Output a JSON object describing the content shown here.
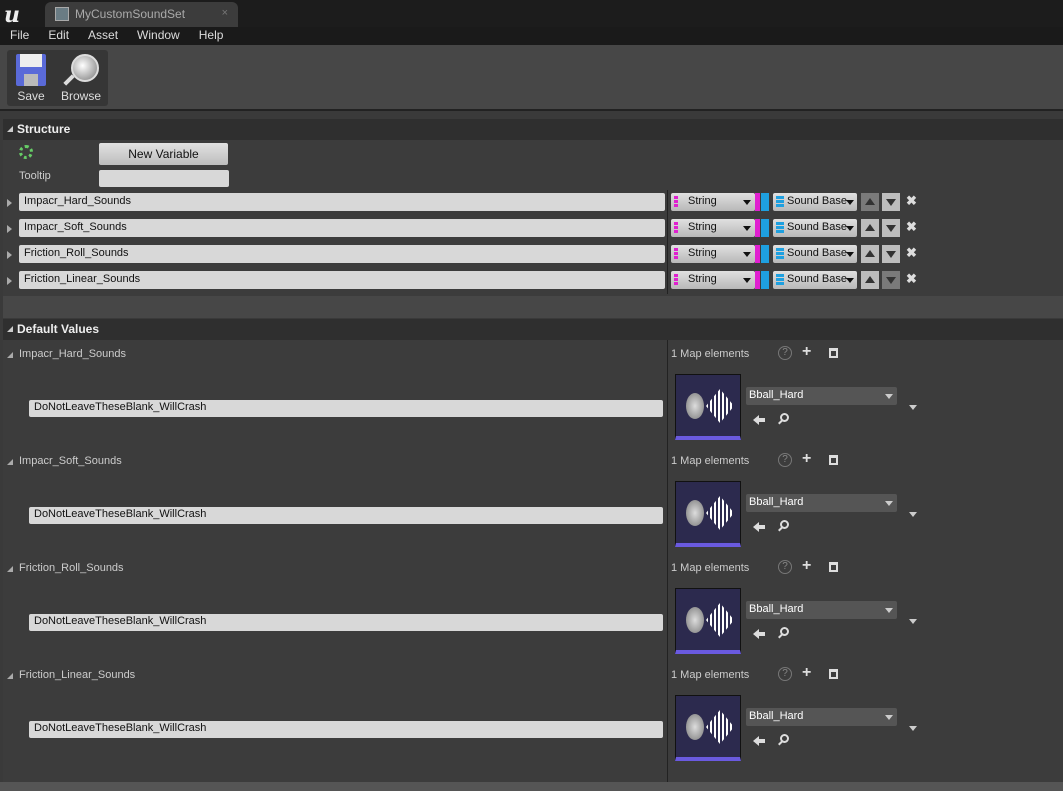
{
  "tab": {
    "title": "MyCustomSoundSet",
    "close": "×"
  },
  "menu": [
    "File",
    "Edit",
    "Asset",
    "Window",
    "Help"
  ],
  "toolbar": {
    "save": "Save",
    "browse": "Browse"
  },
  "structure": {
    "title": "Structure",
    "new_variable": "New Variable",
    "tooltip_label": "Tooltip",
    "tooltip_value": "",
    "variables": [
      {
        "name": "Impacr_Hard_Sounds",
        "key_type": "String",
        "value_type": "Sound Base"
      },
      {
        "name": "Impacr_Soft_Sounds",
        "key_type": "String",
        "value_type": "Sound Base"
      },
      {
        "name": "Friction_Roll_Sounds",
        "key_type": "String",
        "value_type": "Sound Base"
      },
      {
        "name": "Friction_Linear_Sounds",
        "key_type": "String",
        "value_type": "Sound Base"
      }
    ]
  },
  "defaults": {
    "title": "Default Values",
    "groups": [
      {
        "name": "Impacr_Hard_Sounds",
        "count": "1 Map elements",
        "key": "DoNotLeaveTheseBlank_WillCrash",
        "asset": "Bball_Hard"
      },
      {
        "name": "Impacr_Soft_Sounds",
        "count": "1 Map elements",
        "key": "DoNotLeaveTheseBlank_WillCrash",
        "asset": "Bball_Hard"
      },
      {
        "name": "Friction_Roll_Sounds",
        "count": "1 Map elements",
        "key": "DoNotLeaveTheseBlank_WillCrash",
        "asset": "Bball_Hard"
      },
      {
        "name": "Friction_Linear_Sounds",
        "count": "1 Map elements",
        "key": "DoNotLeaveTheseBlank_WillCrash",
        "asset": "Bball_Hard"
      }
    ]
  },
  "colors": {
    "key_pin": "#e020d0",
    "value_pin": "#1ea0e0",
    "thumb_bg": "#2c2a4e"
  }
}
